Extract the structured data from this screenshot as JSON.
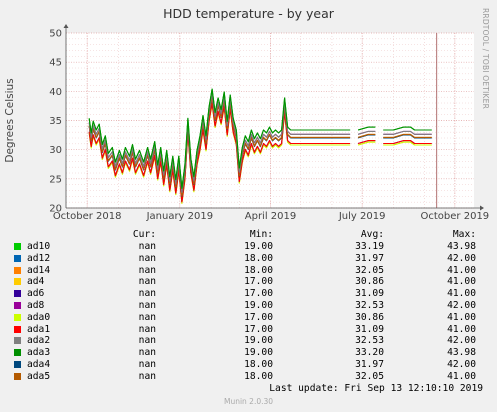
{
  "title": "HDD temperature - by year",
  "side_text": "RRDTOOL / TOBI OETIKER",
  "legend_headers": {
    "cur": "Cur:",
    "min": "Min:",
    "avg": "Avg:",
    "max": "Max:"
  },
  "last_update": "Last update: Fri Sep 13 12:10:10 2019",
  "footer": "Munin 2.0.30",
  "chart_data": {
    "type": "line",
    "ylabel": "Degrees Celsius",
    "ylim": [
      20,
      50
    ],
    "yticks": [
      20,
      25,
      30,
      35,
      40,
      45,
      50
    ],
    "xlim": [
      "2018-09-10",
      "2019-10-20"
    ],
    "xticks": [
      {
        "label": "October 2018",
        "date": "2018-10-01"
      },
      {
        "label": "January 2019",
        "date": "2019-01-01"
      },
      {
        "label": "April 2019",
        "date": "2019-04-01"
      },
      {
        "label": "July 2019",
        "date": "2019-07-01"
      },
      {
        "label": "October 2019",
        "date": "2019-10-01"
      }
    ],
    "now_marker": "2019-09-13",
    "grid": true,
    "legend_position": "bottom",
    "series": [
      {
        "name": "ad10",
        "color": "#00cc00",
        "cur": "nan",
        "min": "19.00",
        "avg": "33.19",
        "max": "43.98"
      },
      {
        "name": "ad12",
        "color": "#0066b3",
        "cur": "nan",
        "min": "18.00",
        "avg": "31.97",
        "max": "42.00"
      },
      {
        "name": "ad14",
        "color": "#ff8000",
        "cur": "nan",
        "min": "18.00",
        "avg": "32.05",
        "max": "41.00"
      },
      {
        "name": "ad4",
        "color": "#ffcc00",
        "cur": "nan",
        "min": "17.00",
        "avg": "30.86",
        "max": "41.00"
      },
      {
        "name": "ad6",
        "color": "#330099",
        "cur": "nan",
        "min": "17.00",
        "avg": "31.09",
        "max": "41.00"
      },
      {
        "name": "ad8",
        "color": "#990099",
        "cur": "nan",
        "min": "19.00",
        "avg": "32.53",
        "max": "42.00"
      },
      {
        "name": "ada0",
        "color": "#ccff00",
        "cur": "nan",
        "min": "17.00",
        "avg": "30.86",
        "max": "41.00"
      },
      {
        "name": "ada1",
        "color": "#ff0000",
        "cur": "nan",
        "min": "17.00",
        "avg": "31.09",
        "max": "41.00"
      },
      {
        "name": "ada2",
        "color": "#808080",
        "cur": "nan",
        "min": "19.00",
        "avg": "32.53",
        "max": "42.00"
      },
      {
        "name": "ada3",
        "color": "#008f00",
        "cur": "nan",
        "min": "19.00",
        "avg": "33.20",
        "max": "43.98"
      },
      {
        "name": "ada4",
        "color": "#00487d",
        "cur": "nan",
        "min": "18.00",
        "avg": "31.97",
        "max": "42.00"
      },
      {
        "name": "ada5",
        "color": "#b35a00",
        "cur": "nan",
        "min": "18.00",
        "avg": "32.05",
        "max": "41.00"
      }
    ],
    "profile": [
      [
        "2018-10-03",
        34.0
      ],
      [
        "2018-10-05",
        31.5
      ],
      [
        "2018-10-07",
        33.5
      ],
      [
        "2018-10-10",
        32.0
      ],
      [
        "2018-10-13",
        33.0
      ],
      [
        "2018-10-16",
        29.5
      ],
      [
        "2018-10-19",
        31.0
      ],
      [
        "2018-10-22",
        28.0
      ],
      [
        "2018-10-26",
        29.0
      ],
      [
        "2018-10-29",
        26.5
      ],
      [
        "2018-11-02",
        28.5
      ],
      [
        "2018-11-05",
        27.0
      ],
      [
        "2018-11-08",
        29.0
      ],
      [
        "2018-11-12",
        27.5
      ],
      [
        "2018-11-15",
        29.5
      ],
      [
        "2018-11-18",
        27.0
      ],
      [
        "2018-11-22",
        28.5
      ],
      [
        "2018-11-26",
        26.5
      ],
      [
        "2018-11-30",
        29.0
      ],
      [
        "2018-12-03",
        27.0
      ],
      [
        "2018-12-07",
        30.0
      ],
      [
        "2018-12-10",
        26.0
      ],
      [
        "2018-12-13",
        29.0
      ],
      [
        "2018-12-16",
        25.0
      ],
      [
        "2018-12-19",
        28.5
      ],
      [
        "2018-12-22",
        24.0
      ],
      [
        "2018-12-25",
        27.5
      ],
      [
        "2018-12-28",
        23.5
      ],
      [
        "2018-12-31",
        27.5
      ],
      [
        "2019-01-03",
        22.0
      ],
      [
        "2019-01-06",
        26.0
      ],
      [
        "2019-01-09",
        34.0
      ],
      [
        "2019-01-12",
        27.0
      ],
      [
        "2019-01-15",
        24.0
      ],
      [
        "2019-01-18",
        28.5
      ],
      [
        "2019-01-21",
        31.0
      ],
      [
        "2019-01-24",
        34.5
      ],
      [
        "2019-01-27",
        31.0
      ],
      [
        "2019-01-30",
        36.0
      ],
      [
        "2019-02-02",
        39.0
      ],
      [
        "2019-02-05",
        35.0
      ],
      [
        "2019-02-08",
        37.5
      ],
      [
        "2019-02-11",
        35.5
      ],
      [
        "2019-02-14",
        38.5
      ],
      [
        "2019-02-17",
        33.5
      ],
      [
        "2019-02-20",
        38.0
      ],
      [
        "2019-02-23",
        34.0
      ],
      [
        "2019-02-26",
        32.0
      ],
      [
        "2019-03-01",
        25.5
      ],
      [
        "2019-03-04",
        29.0
      ],
      [
        "2019-03-07",
        31.0
      ],
      [
        "2019-03-10",
        30.0
      ],
      [
        "2019-03-13",
        32.0
      ],
      [
        "2019-03-16",
        30.5
      ],
      [
        "2019-03-19",
        31.5
      ],
      [
        "2019-03-22",
        30.5
      ],
      [
        "2019-03-25",
        32.0
      ],
      [
        "2019-03-28",
        31.5
      ],
      [
        "2019-03-31",
        32.5
      ],
      [
        "2019-04-03",
        31.5
      ],
      [
        "2019-04-06",
        32.0
      ],
      [
        "2019-04-09",
        31.5
      ],
      [
        "2019-04-12",
        32.0
      ],
      [
        "2019-04-15",
        37.5
      ],
      [
        "2019-04-18",
        32.5
      ],
      [
        "2019-04-21",
        32.0
      ],
      [
        "2019-04-24",
        32.0
      ],
      [
        "2019-05-04",
        32.0
      ],
      [
        "2019-05-14",
        32.0
      ],
      [
        "2019-05-24",
        32.0
      ],
      [
        "2019-06-03",
        32.0
      ],
      [
        "2019-06-13",
        32.0
      ],
      [
        "2019-06-19",
        32.0
      ],
      null,
      [
        "2019-06-27",
        32.0
      ],
      [
        "2019-07-07",
        32.5
      ],
      [
        "2019-07-14",
        32.5
      ],
      null,
      [
        "2019-07-22",
        32.0
      ],
      [
        "2019-08-01",
        32.0
      ],
      [
        "2019-08-11",
        32.5
      ],
      [
        "2019-08-18",
        32.5
      ],
      [
        "2019-08-22",
        32.0
      ],
      [
        "2019-09-01",
        32.0
      ],
      [
        "2019-09-08",
        32.0
      ]
    ]
  }
}
